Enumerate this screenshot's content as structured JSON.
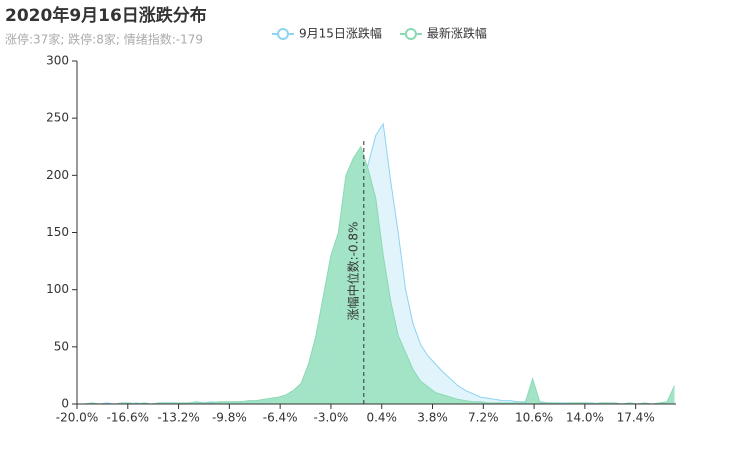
{
  "chart_data": {
    "type": "area",
    "title": "2020年9月16日涨跌分布",
    "subtitle": "涨停:37家; 跌停:8家; 情绪指数:-179",
    "x": [
      -20,
      -19.5,
      -19,
      -18.5,
      -18,
      -17.5,
      -17,
      -16.5,
      -16,
      -15.5,
      -15,
      -14.5,
      -14,
      -13.5,
      -13,
      -12.5,
      -12,
      -11.5,
      -11,
      -10.5,
      -10,
      -9.5,
      -9,
      -8.5,
      -8,
      -7.5,
      -7,
      -6.5,
      -6,
      -5.5,
      -5,
      -4.5,
      -4,
      -3.5,
      -3,
      -2.5,
      -2,
      -1.5,
      -1,
      -0.5,
      0,
      0.5,
      1,
      1.5,
      2,
      2.5,
      3,
      3.5,
      4,
      4.5,
      5,
      5.5,
      6,
      6.5,
      7,
      7.5,
      8,
      8.5,
      9,
      9.5,
      10,
      10.5,
      11,
      11.5,
      12,
      12.5,
      13,
      13.5,
      14,
      14.5,
      15,
      15.5,
      16,
      16.5,
      17,
      17.5,
      18,
      18.5,
      19,
      19.5,
      20
    ],
    "series": [
      {
        "name": "9月15日涨跌幅",
        "color": "#8dd3f2",
        "fill": "#dff3fb",
        "values": [
          0,
          0,
          0,
          0,
          1,
          0,
          0,
          0,
          1,
          0,
          0,
          1,
          1,
          1,
          0,
          1,
          1,
          1,
          2,
          1,
          1,
          2,
          2,
          2,
          2,
          3,
          3,
          4,
          5,
          7,
          10,
          14,
          20,
          35,
          55,
          80,
          110,
          150,
          180,
          210,
          235,
          245,
          195,
          150,
          100,
          70,
          52,
          42,
          35,
          28,
          22,
          16,
          12,
          9,
          6,
          5,
          4,
          3,
          3,
          2,
          2,
          4,
          2,
          1,
          1,
          1,
          1,
          1,
          1,
          1,
          0,
          1,
          0,
          0,
          1,
          0,
          0,
          0,
          0,
          1,
          2
        ]
      },
      {
        "name": "最新涨跌幅",
        "color": "#8ad9b5",
        "fill": "#9fe3c3",
        "values": [
          0,
          0,
          1,
          0,
          0,
          0,
          1,
          1,
          0,
          1,
          0,
          1,
          1,
          1,
          1,
          1,
          2,
          1,
          1,
          2,
          2,
          2,
          2,
          3,
          3,
          4,
          5,
          6,
          8,
          12,
          18,
          35,
          60,
          95,
          130,
          150,
          200,
          215,
          225,
          205,
          180,
          130,
          90,
          60,
          45,
          30,
          20,
          15,
          10,
          8,
          6,
          4,
          3,
          2,
          2,
          1,
          1,
          1,
          1,
          1,
          1,
          22,
          1,
          1,
          1,
          0,
          1,
          1,
          1,
          0,
          1,
          1,
          1,
          0,
          1,
          0,
          1,
          0,
          1,
          2,
          16
        ]
      }
    ],
    "xlim": [
      -20,
      20.1
    ],
    "xticks": [
      {
        "value": -20,
        "label": "-20.0%"
      },
      {
        "value": -16.6,
        "label": "-16.6%"
      },
      {
        "value": -13.2,
        "label": "-13.2%"
      },
      {
        "value": -9.8,
        "label": "-9.8%"
      },
      {
        "value": -6.4,
        "label": "-6.4%"
      },
      {
        "value": -3,
        "label": "-3.0%"
      },
      {
        "value": 0.4,
        "label": "0.4%"
      },
      {
        "value": 3.8,
        "label": "3.8%"
      },
      {
        "value": 7.2,
        "label": "7.2%"
      },
      {
        "value": 10.6,
        "label": "10.6%"
      },
      {
        "value": 14,
        "label": "14.0%"
      },
      {
        "value": 17.4,
        "label": "17.4%"
      }
    ],
    "ylim": [
      0,
      300
    ],
    "yticks": [
      0,
      50,
      100,
      150,
      200,
      250,
      300
    ],
    "median": -0.8,
    "median_label": "涨幅中位数:-0.8%"
  }
}
